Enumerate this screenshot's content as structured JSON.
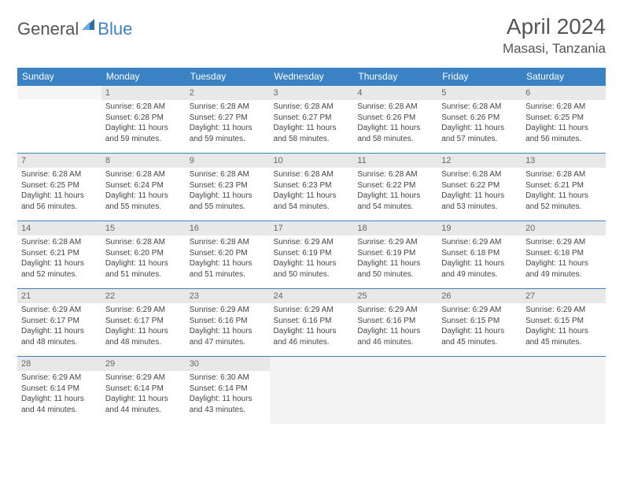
{
  "brand": {
    "part1": "General",
    "part2": "Blue"
  },
  "title": "April 2024",
  "location": "Masasi, Tanzania",
  "colors": {
    "header_bg": "#3b82c4",
    "header_text": "#ffffff",
    "daynum_bg": "#e8e8e8",
    "border": "#3b82c4"
  },
  "weekdays": [
    "Sunday",
    "Monday",
    "Tuesday",
    "Wednesday",
    "Thursday",
    "Friday",
    "Saturday"
  ],
  "weeks": [
    [
      null,
      {
        "n": 1,
        "sr": "6:28 AM",
        "ss": "6:28 PM",
        "dl": "11 hours and 59 minutes."
      },
      {
        "n": 2,
        "sr": "6:28 AM",
        "ss": "6:27 PM",
        "dl": "11 hours and 59 minutes."
      },
      {
        "n": 3,
        "sr": "6:28 AM",
        "ss": "6:27 PM",
        "dl": "11 hours and 58 minutes."
      },
      {
        "n": 4,
        "sr": "6:28 AM",
        "ss": "6:26 PM",
        "dl": "11 hours and 58 minutes."
      },
      {
        "n": 5,
        "sr": "6:28 AM",
        "ss": "6:26 PM",
        "dl": "11 hours and 57 minutes."
      },
      {
        "n": 6,
        "sr": "6:28 AM",
        "ss": "6:25 PM",
        "dl": "11 hours and 56 minutes."
      }
    ],
    [
      {
        "n": 7,
        "sr": "6:28 AM",
        "ss": "6:25 PM",
        "dl": "11 hours and 56 minutes."
      },
      {
        "n": 8,
        "sr": "6:28 AM",
        "ss": "6:24 PM",
        "dl": "11 hours and 55 minutes."
      },
      {
        "n": 9,
        "sr": "6:28 AM",
        "ss": "6:23 PM",
        "dl": "11 hours and 55 minutes."
      },
      {
        "n": 10,
        "sr": "6:28 AM",
        "ss": "6:23 PM",
        "dl": "11 hours and 54 minutes."
      },
      {
        "n": 11,
        "sr": "6:28 AM",
        "ss": "6:22 PM",
        "dl": "11 hours and 54 minutes."
      },
      {
        "n": 12,
        "sr": "6:28 AM",
        "ss": "6:22 PM",
        "dl": "11 hours and 53 minutes."
      },
      {
        "n": 13,
        "sr": "6:28 AM",
        "ss": "6:21 PM",
        "dl": "11 hours and 52 minutes."
      }
    ],
    [
      {
        "n": 14,
        "sr": "6:28 AM",
        "ss": "6:21 PM",
        "dl": "11 hours and 52 minutes."
      },
      {
        "n": 15,
        "sr": "6:28 AM",
        "ss": "6:20 PM",
        "dl": "11 hours and 51 minutes."
      },
      {
        "n": 16,
        "sr": "6:28 AM",
        "ss": "6:20 PM",
        "dl": "11 hours and 51 minutes."
      },
      {
        "n": 17,
        "sr": "6:29 AM",
        "ss": "6:19 PM",
        "dl": "11 hours and 50 minutes."
      },
      {
        "n": 18,
        "sr": "6:29 AM",
        "ss": "6:19 PM",
        "dl": "11 hours and 50 minutes."
      },
      {
        "n": 19,
        "sr": "6:29 AM",
        "ss": "6:18 PM",
        "dl": "11 hours and 49 minutes."
      },
      {
        "n": 20,
        "sr": "6:29 AM",
        "ss": "6:18 PM",
        "dl": "11 hours and 49 minutes."
      }
    ],
    [
      {
        "n": 21,
        "sr": "6:29 AM",
        "ss": "6:17 PM",
        "dl": "11 hours and 48 minutes."
      },
      {
        "n": 22,
        "sr": "6:29 AM",
        "ss": "6:17 PM",
        "dl": "11 hours and 48 minutes."
      },
      {
        "n": 23,
        "sr": "6:29 AM",
        "ss": "6:16 PM",
        "dl": "11 hours and 47 minutes."
      },
      {
        "n": 24,
        "sr": "6:29 AM",
        "ss": "6:16 PM",
        "dl": "11 hours and 46 minutes."
      },
      {
        "n": 25,
        "sr": "6:29 AM",
        "ss": "6:16 PM",
        "dl": "11 hours and 46 minutes."
      },
      {
        "n": 26,
        "sr": "6:29 AM",
        "ss": "6:15 PM",
        "dl": "11 hours and 45 minutes."
      },
      {
        "n": 27,
        "sr": "6:29 AM",
        "ss": "6:15 PM",
        "dl": "11 hours and 45 minutes."
      }
    ],
    [
      {
        "n": 28,
        "sr": "6:29 AM",
        "ss": "6:14 PM",
        "dl": "11 hours and 44 minutes."
      },
      {
        "n": 29,
        "sr": "6:29 AM",
        "ss": "6:14 PM",
        "dl": "11 hours and 44 minutes."
      },
      {
        "n": 30,
        "sr": "6:30 AM",
        "ss": "6:14 PM",
        "dl": "11 hours and 43 minutes."
      },
      "trail",
      "trail",
      "trail",
      "trail"
    ]
  ],
  "labels": {
    "sunrise": "Sunrise:",
    "sunset": "Sunset:",
    "daylight": "Daylight:"
  }
}
